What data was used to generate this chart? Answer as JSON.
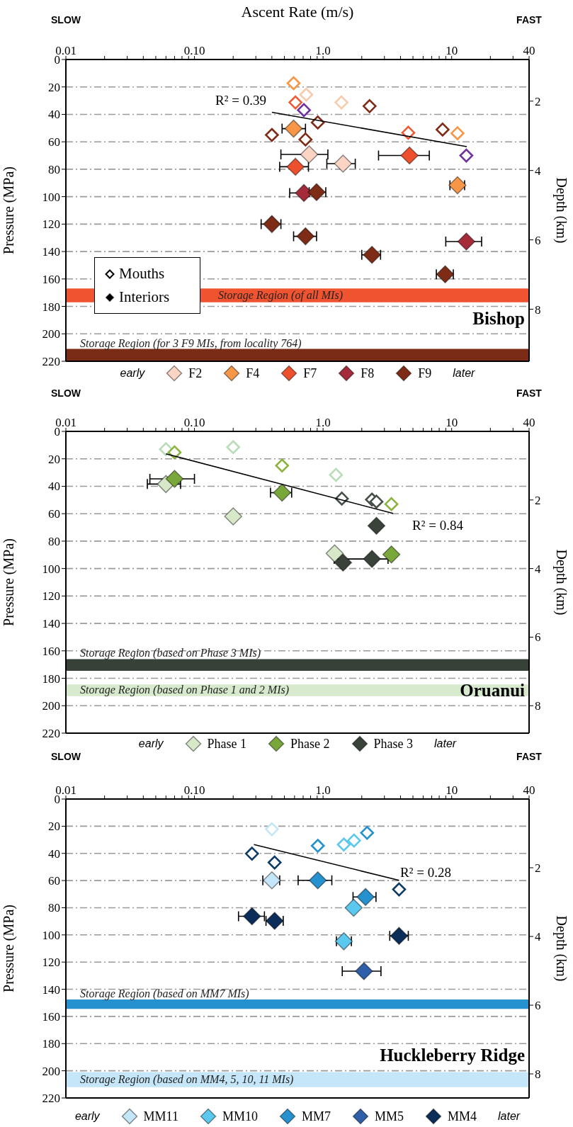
{
  "chart_data": [
    {
      "type": "scatter",
      "title": "Bishop",
      "xlabel": "Ascent Rate (m/s)",
      "ylabel": "Pressure (MPa)",
      "y2label": "Depth (km)",
      "log": "x",
      "xlim": [
        0.01,
        40
      ],
      "xticks": [
        {
          "value": 0.01,
          "label": "0.01"
        },
        {
          "value": 0.02,
          "label": null
        },
        {
          "value": 0.03,
          "label": null
        },
        {
          "value": 0.04,
          "label": null
        },
        {
          "value": 0.05,
          "label": null
        },
        {
          "value": 0.06,
          "label": null
        },
        {
          "value": 0.07,
          "label": null
        },
        {
          "value": 0.08,
          "label": null
        },
        {
          "value": 0.09,
          "label": null
        },
        {
          "value": 0.1,
          "label": "0.10"
        },
        {
          "value": 0.2,
          "label": null
        },
        {
          "value": 0.3,
          "label": null
        },
        {
          "value": 0.4,
          "label": null
        },
        {
          "value": 0.5,
          "label": null
        },
        {
          "value": 0.6,
          "label": null
        },
        {
          "value": 0.7,
          "label": null
        },
        {
          "value": 0.8,
          "label": null
        },
        {
          "value": 0.9,
          "label": null
        },
        {
          "value": 1,
          "label": "1.0"
        },
        {
          "value": 2,
          "label": null
        },
        {
          "value": 3,
          "label": null
        },
        {
          "value": 4,
          "label": null
        },
        {
          "value": 5,
          "label": null
        },
        {
          "value": 6,
          "label": null
        },
        {
          "value": 7,
          "label": null
        },
        {
          "value": 8,
          "label": null
        },
        {
          "value": 9,
          "label": null
        },
        {
          "value": 10,
          "label": "10"
        },
        {
          "value": 20,
          "label": null
        },
        {
          "value": 30,
          "label": null
        },
        {
          "value": 40,
          "label": "40"
        }
      ],
      "ylim": [
        220,
        0
      ],
      "yticks": [
        0,
        20,
        40,
        60,
        80,
        100,
        120,
        140,
        160,
        180,
        200,
        220
      ],
      "y2lim": [
        9.5,
        0.8
      ],
      "y2ticks": [
        2,
        4,
        6,
        8
      ],
      "grid": "y",
      "legend": "bottom",
      "marker": "diamond",
      "annotations": [
        "SLOW",
        "FAST",
        "early",
        "later",
        "Mouths",
        "Interiors",
        "R² = 0.39"
      ],
      "bands": [
        {
          "axis": "y",
          "from": 167,
          "to": 177,
          "label": "Storage Region (of all MIs)",
          "color": "#f0532f"
        },
        {
          "axis": "y",
          "from": 211,
          "to": 220,
          "label": "Storage Region (for 3 F9 MIs, from locality 764)",
          "color": "#7b2c17"
        }
      ],
      "series": [
        {
          "color": "#f8cbad",
          "x": [
            0.74,
            1.39
          ],
          "values": [
            25.6,
            31.3
          ]
        },
        {
          "color": "#f79646",
          "x": [
            0.59,
            11.1
          ],
          "values": [
            17.3,
            53.8
          ]
        },
        {
          "color": "#ef5a35",
          "x": [
            0.61,
            4.6
          ],
          "values": [
            31.3,
            53.4
          ]
        },
        {
          "color": "#7030a0",
          "x": [
            0.71,
            13.0
          ],
          "values": [
            36.9,
            70
          ]
        },
        {
          "color": "#7f2c16",
          "x": [
            2.3,
            0.91,
            0.4,
            8.5,
            0.73
          ],
          "values": [
            34,
            45.9,
            55,
            51.1,
            58.3
          ]
        },
        {
          "name": "F2",
          "color": "#fbd4c4",
          "x": [
            0.78,
            1.43
          ],
          "values": [
            69.2,
            75.9
          ],
          "xerrors": [
            [
              0.47,
              1.09
            ],
            [
              1.07,
              1.78
            ]
          ]
        },
        {
          "name": "F4",
          "color": "#f79646",
          "x": [
            0.59,
            11.1
          ],
          "values": [
            50.4,
            91.7
          ],
          "xerrors": [
            [
              0.48,
              0.73
            ],
            [
              9.7,
              12.6
            ]
          ]
        },
        {
          "name": "F7",
          "color": "#ee4f2c",
          "x": [
            4.7,
            0.61
          ],
          "values": [
            70,
            78.2
          ],
          "xerrors": [
            [
              2.7,
              6.7
            ],
            [
              0.46,
              0.77
            ]
          ]
        },
        {
          "name": "F8",
          "color": "#a52a3a",
          "x": [
            0.71,
            13.0
          ],
          "values": [
            97.3,
            132.7
          ],
          "xerrors": [
            [
              0.55,
              0.71
            ],
            [
              9.0,
              17.1
            ]
          ]
        },
        {
          "name": "F9",
          "color": "#7f2c16",
          "x": [
            0.89,
            0.4,
            0.73,
            2.4,
            8.9
          ],
          "values": [
            96.7,
            120,
            128.9,
            142.4,
            156.6
          ],
          "xerrors": [
            [
              0.78,
              1.05
            ],
            [
              0.33,
              0.47
            ],
            [
              0.59,
              0.89
            ],
            [
              2.0,
              2.8
            ],
            [
              7.6,
              10.3
            ]
          ]
        },
        {
          "type": "line",
          "marker": "none",
          "color": "#000000",
          "x": [
            0.4,
            13.1
          ],
          "values": [
            38.5,
            63.5
          ]
        }
      ]
    },
    {
      "type": "scatter",
      "title": "Oruanui",
      "ylabel": "Pressure (MPa)",
      "y2label": "Depth (km)",
      "log": "x",
      "xlim": [
        0.01,
        40
      ],
      "xticks": [
        {
          "value": 0.01,
          "label": "0.01"
        },
        {
          "value": 0.02,
          "label": null
        },
        {
          "value": 0.03,
          "label": null
        },
        {
          "value": 0.04,
          "label": null
        },
        {
          "value": 0.05,
          "label": null
        },
        {
          "value": 0.06,
          "label": null
        },
        {
          "value": 0.07,
          "label": null
        },
        {
          "value": 0.08,
          "label": null
        },
        {
          "value": 0.09,
          "label": null
        },
        {
          "value": 0.1,
          "label": "0.10"
        },
        {
          "value": 0.2,
          "label": null
        },
        {
          "value": 0.3,
          "label": null
        },
        {
          "value": 0.4,
          "label": null
        },
        {
          "value": 0.5,
          "label": null
        },
        {
          "value": 0.6,
          "label": null
        },
        {
          "value": 0.7,
          "label": null
        },
        {
          "value": 0.8,
          "label": null
        },
        {
          "value": 0.9,
          "label": null
        },
        {
          "value": 1,
          "label": "1.0"
        },
        {
          "value": 2,
          "label": null
        },
        {
          "value": 3,
          "label": null
        },
        {
          "value": 4,
          "label": null
        },
        {
          "value": 5,
          "label": null
        },
        {
          "value": 6,
          "label": null
        },
        {
          "value": 7,
          "label": null
        },
        {
          "value": 8,
          "label": null
        },
        {
          "value": 9,
          "label": null
        },
        {
          "value": 10,
          "label": "10"
        },
        {
          "value": 20,
          "label": null
        },
        {
          "value": 30,
          "label": null
        },
        {
          "value": 40,
          "label": "40"
        }
      ],
      "ylim": [
        220,
        0
      ],
      "yticks": [
        0,
        20,
        40,
        60,
        80,
        100,
        120,
        140,
        160,
        180,
        200,
        220
      ],
      "y2lim": [
        8.8,
        0
      ],
      "y2ticks": [
        2,
        4,
        6,
        8
      ],
      "grid": "y",
      "legend": "bottom",
      "marker": "diamond",
      "annotations": [
        "SLOW",
        "FAST",
        "early",
        "later",
        "R² = 0.84"
      ],
      "bands": [
        {
          "axis": "y",
          "from": 166,
          "to": 174.5,
          "label": "Storage Region (based on Phase 3 MIs)",
          "color": "#374137"
        },
        {
          "axis": "y",
          "from": 184.5,
          "to": 193,
          "label": "Storage Region (based on Phase 1 and 2 MIs)",
          "color": "#d7eacd"
        }
      ],
      "series": [
        {
          "color": "#b9dcb9",
          "x": [
            0.06,
            0.2,
            1.26
          ],
          "values": [
            13.0,
            11.5,
            31.7
          ]
        },
        {
          "color": "#8db33f",
          "x": [
            0.07,
            0.48,
            3.4
          ],
          "values": [
            15.3,
            24.9,
            53.0
          ]
        },
        {
          "color": "#464f48",
          "x": [
            1.4,
            2.4,
            2.6
          ],
          "values": [
            49.0,
            49.7,
            51.2
          ]
        },
        {
          "name": "Phase 1",
          "color": "#d7e8c9",
          "x": [
            0.06,
            0.2,
            1.23
          ],
          "values": [
            38.4,
            62.0,
            89.0
          ],
          "xerrors": [
            [
              0.043,
              0.078
            ],
            null,
            null
          ]
        },
        {
          "name": "Phase 2",
          "color": "#7aa73a",
          "x": [
            0.07,
            0.48,
            3.4
          ],
          "values": [
            34.6,
            44.7,
            89.7
          ],
          "xerrors": [
            [
              0.045,
              0.1
            ],
            [
              0.39,
              0.57
            ],
            null
          ]
        },
        {
          "name": "Phase 3",
          "color": "#3a4339",
          "x": [
            2.6,
            1.43,
            2.4
          ],
          "values": [
            68.8,
            95.7,
            93.0
          ],
          "xerrors": [
            null,
            null,
            [
              1.22,
              3.2
            ]
          ]
        },
        {
          "type": "line",
          "marker": "none",
          "color": "#000000",
          "x": [
            0.06,
            3.5
          ],
          "values": [
            16.4,
            59.8
          ]
        }
      ]
    },
    {
      "type": "scatter",
      "title": "Huckleberry Ridge",
      "ylabel": "Pressure (MPa)",
      "y2label": "Depth (km)",
      "log": "x",
      "xlim": [
        0.01,
        40
      ],
      "xticks": [
        {
          "value": 0.01,
          "label": "0.01"
        },
        {
          "value": 0.02,
          "label": null
        },
        {
          "value": 0.03,
          "label": null
        },
        {
          "value": 0.04,
          "label": null
        },
        {
          "value": 0.05,
          "label": null
        },
        {
          "value": 0.06,
          "label": null
        },
        {
          "value": 0.07,
          "label": null
        },
        {
          "value": 0.08,
          "label": null
        },
        {
          "value": 0.09,
          "label": null
        },
        {
          "value": 0.1,
          "label": "0.10"
        },
        {
          "value": 0.2,
          "label": null
        },
        {
          "value": 0.3,
          "label": null
        },
        {
          "value": 0.4,
          "label": null
        },
        {
          "value": 0.5,
          "label": null
        },
        {
          "value": 0.6,
          "label": null
        },
        {
          "value": 0.7,
          "label": null
        },
        {
          "value": 0.8,
          "label": null
        },
        {
          "value": 0.9,
          "label": null
        },
        {
          "value": 1,
          "label": "1.0"
        },
        {
          "value": 2,
          "label": null
        },
        {
          "value": 3,
          "label": null
        },
        {
          "value": 4,
          "label": null
        },
        {
          "value": 5,
          "label": null
        },
        {
          "value": 6,
          "label": null
        },
        {
          "value": 7,
          "label": null
        },
        {
          "value": 8,
          "label": null
        },
        {
          "value": 9,
          "label": null
        },
        {
          "value": 10,
          "label": "10"
        },
        {
          "value": 20,
          "label": null
        },
        {
          "value": 30,
          "label": null
        },
        {
          "value": 40,
          "label": "40"
        }
      ],
      "ylim": [
        220,
        0
      ],
      "yticks": [
        0,
        20,
        40,
        60,
        80,
        100,
        120,
        140,
        160,
        180,
        200,
        220
      ],
      "y2lim": [
        8.7,
        0
      ],
      "y2ticks": [
        2,
        4,
        6,
        8
      ],
      "grid": "y",
      "legend": "bottom",
      "marker": "diamond",
      "annotations": [
        "SLOW",
        "FAST",
        "early",
        "later",
        "R² = 0.28"
      ],
      "bands": [
        {
          "axis": "y",
          "from": 147.6,
          "to": 154.5,
          "label": "Storage Region (based on MM7 MIs)",
          "color": "#2592cf"
        },
        {
          "axis": "y",
          "from": 201,
          "to": 212,
          "label": "Storage Region (based on MM4, 5, 10, 11 MIs)",
          "color": "#c5e6f8"
        }
      ],
      "series": [
        {
          "color": "#c5e6f8",
          "x": [
            0.4
          ],
          "values": [
            22.2
          ]
        },
        {
          "color": "#5ac8ef",
          "x": [
            1.45,
            1.74
          ],
          "values": [
            33.5,
            30.6
          ]
        },
        {
          "color": "#2592cf",
          "x": [
            0.91,
            2.2
          ],
          "values": [
            34.4,
            24.9
          ]
        },
        {
          "color": "#0d3a66",
          "x": [
            0.28,
            0.42,
            3.9
          ],
          "values": [
            40.2,
            46.7,
            66.5
          ]
        },
        {
          "name": "MM11",
          "color": "#c5e6f8",
          "x": [
            0.4
          ],
          "values": [
            59.8
          ],
          "xerrors": [
            [
              0.34,
              0.46
            ]
          ]
        },
        {
          "name": "MM10",
          "color": "#5bc8f0",
          "x": [
            1.73,
            1.45
          ],
          "values": [
            80.0,
            104.7
          ],
          "xerrors": [
            null,
            [
              1.27,
              1.66
            ]
          ]
        },
        {
          "name": "MM7",
          "color": "#2592cf",
          "x": [
            0.91,
            2.14
          ],
          "values": [
            59.8,
            72.1
          ],
          "xerrors": [
            [
              0.64,
              1.17
            ],
            [
              1.71,
              2.58
            ]
          ]
        },
        {
          "name": "MM5",
          "color": "#2e5fa8",
          "x": [
            2.08
          ],
          "values": [
            126.7
          ],
          "xerrors": [
            [
              1.41,
              2.82
            ]
          ]
        },
        {
          "name": "MM4",
          "color": "#0b2d59",
          "x": [
            0.28,
            0.42,
            3.9
          ],
          "values": [
            86.3,
            89.7,
            100.7
          ],
          "xerrors": [
            [
              0.22,
              0.35
            ],
            [
              0.36,
              0.49
            ],
            [
              3.3,
              4.6
            ]
          ]
        },
        {
          "type": "line",
          "marker": "none",
          "color": "#000000",
          "x": [
            0.29,
            3.9
          ],
          "values": [
            33.5,
            59.8
          ]
        }
      ]
    }
  ]
}
